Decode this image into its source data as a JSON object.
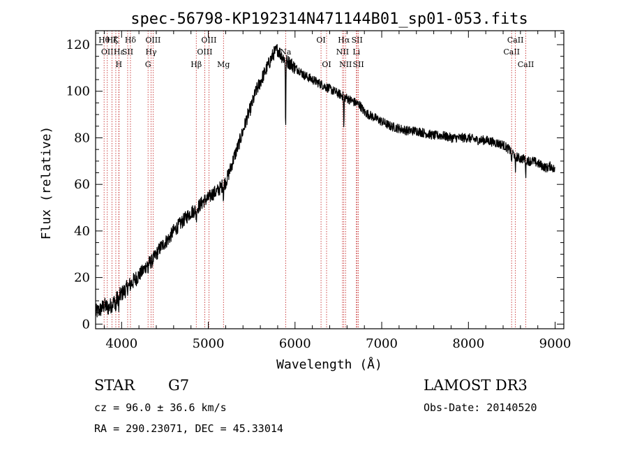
{
  "chart_data": {
    "type": "line",
    "title": "spec-56798-KP192314N471144B01_sp01-053.fits",
    "xlabel": "Wavelength (Å)",
    "ylabel": "Flux (relative)",
    "xlim": [
      3700,
      9100
    ],
    "ylim": [
      -2,
      126
    ],
    "x_ticks": [
      4000,
      5000,
      6000,
      7000,
      8000,
      9000
    ],
    "y_ticks": [
      0,
      20,
      40,
      60,
      80,
      100,
      120
    ],
    "grid": false,
    "series": [
      {
        "name": "spectrum",
        "x": [
          3700,
          3750,
          3800,
          3850,
          3900,
          3950,
          4000,
          4050,
          4100,
          4150,
          4200,
          4250,
          4300,
          4350,
          4400,
          4450,
          4500,
          4550,
          4600,
          4650,
          4700,
          4750,
          4800,
          4850,
          4900,
          4950,
          5000,
          5050,
          5100,
          5150,
          5200,
          5250,
          5300,
          5350,
          5400,
          5450,
          5500,
          5550,
          5600,
          5650,
          5700,
          5750,
          5800,
          5850,
          5900,
          5950,
          6000,
          6050,
          6100,
          6150,
          6200,
          6250,
          6300,
          6350,
          6400,
          6450,
          6500,
          6550,
          6600,
          6650,
          6700,
          6750,
          6800,
          6850,
          6900,
          6950,
          7000,
          7100,
          7200,
          7300,
          7400,
          7500,
          7600,
          7700,
          7800,
          7900,
          8000,
          8100,
          8200,
          8300,
          8400,
          8500,
          8550,
          8600,
          8650,
          8700,
          8750,
          8800,
          8850,
          8900,
          8950,
          9000
        ],
        "values": [
          5,
          6,
          8,
          7,
          9,
          11,
          13,
          15,
          17,
          19,
          21,
          23,
          26,
          27,
          30,
          33,
          35,
          37,
          40,
          42,
          44,
          46,
          48,
          49,
          51,
          53,
          54,
          56,
          57,
          59,
          61,
          66,
          72,
          77,
          83,
          89,
          94,
          100,
          104,
          108,
          112,
          116,
          118,
          115,
          113,
          112,
          110,
          109,
          107,
          106,
          105,
          104,
          103,
          102,
          101,
          100,
          99,
          98,
          97,
          96,
          95,
          94,
          91,
          90,
          89,
          88,
          87,
          85,
          84,
          83,
          83,
          82,
          81,
          81,
          80,
          80,
          80,
          79,
          79,
          78,
          77,
          74,
          72,
          71,
          71,
          70,
          70,
          69,
          68,
          67,
          68,
          66
        ]
      }
    ],
    "line_markers": [
      {
        "wavelength": 3798,
        "label": "Hθ",
        "row": 0
      },
      {
        "wavelength": 3835,
        "label": "OII",
        "row": 1
      },
      {
        "wavelength": 3889,
        "label": "Hζ",
        "row": 0
      },
      {
        "wavelength": 3933,
        "label": "K",
        "row": 0
      },
      {
        "wavelength": 3968,
        "label": "H",
        "row": 2
      },
      {
        "wavelength": 3970,
        "label": "Hε",
        "row": 1
      },
      {
        "wavelength": 4070,
        "label": "SII",
        "row": 1
      },
      {
        "wavelength": 4102,
        "label": "Hδ",
        "row": 0
      },
      {
        "wavelength": 4305,
        "label": "G",
        "row": 2
      },
      {
        "wavelength": 4340,
        "label": "Hγ",
        "row": 1
      },
      {
        "wavelength": 4363,
        "label": "OIII",
        "row": 0
      },
      {
        "wavelength": 4861,
        "label": "Hβ",
        "row": 2
      },
      {
        "wavelength": 4959,
        "label": "OIII",
        "row": 1
      },
      {
        "wavelength": 5007,
        "label": "OIII",
        "row": 0
      },
      {
        "wavelength": 5175,
        "label": "Mg",
        "row": 2
      },
      {
        "wavelength": 5892,
        "label": "Na",
        "row": 1
      },
      {
        "wavelength": 6300,
        "label": "OI",
        "row": 0
      },
      {
        "wavelength": 6364,
        "label": "OI",
        "row": 2
      },
      {
        "wavelength": 6548,
        "label": "NII",
        "row": 1
      },
      {
        "wavelength": 6563,
        "label": "Hα",
        "row": 0
      },
      {
        "wavelength": 6583,
        "label": "NII",
        "row": 2
      },
      {
        "wavelength": 6708,
        "label": "Li",
        "row": 1
      },
      {
        "wavelength": 6716,
        "label": "SII",
        "row": 0
      },
      {
        "wavelength": 6731,
        "label": "SII",
        "row": 2
      },
      {
        "wavelength": 8498,
        "label": "CaII",
        "row": 1
      },
      {
        "wavelength": 8542,
        "label": "CaII",
        "row": 0
      },
      {
        "wavelength": 8662,
        "label": "CaII",
        "row": 2
      }
    ]
  },
  "info": {
    "object_class": "STAR",
    "subclass": "G7",
    "survey": "LAMOST DR3",
    "redshift_line": "cz = 96.0 ± 36.6 km/s",
    "obs_date": "Obs-Date: 20140520",
    "coords": "RA = 290.23071, DEC =  45.33014"
  },
  "colors": {
    "spectrum": "#000000",
    "marker": "#c01818",
    "axes": "#000000",
    "background": "#ffffff"
  }
}
